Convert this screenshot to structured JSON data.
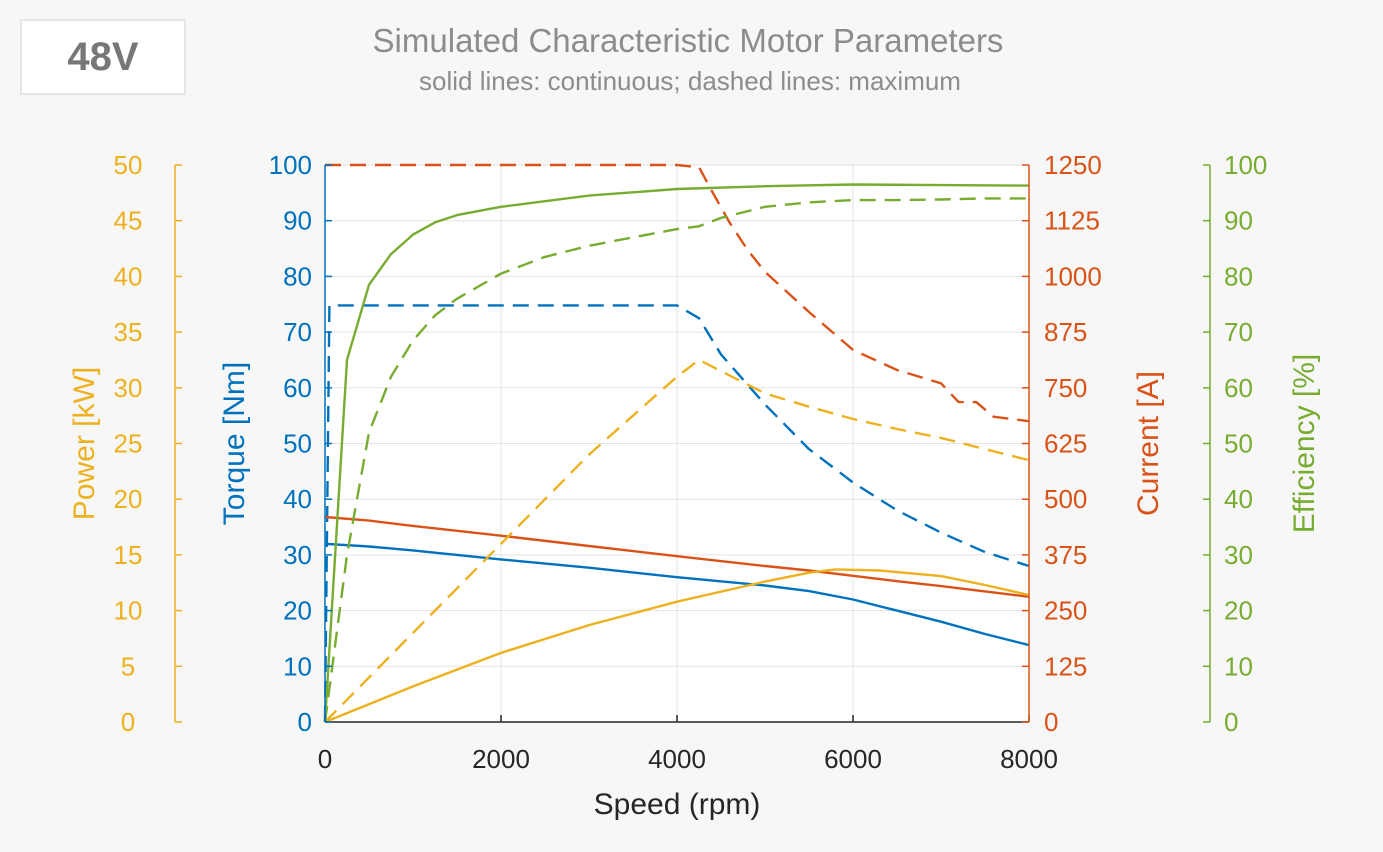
{
  "badge": "48V",
  "chart_data": {
    "type": "line",
    "title": "Simulated Characteristic Motor Parameters",
    "subtitle": "solid lines: continuous; dashed lines: maximum",
    "xlabel": "Speed (rpm)",
    "xlim": [
      0,
      8000
    ],
    "xticks": [
      0,
      2000,
      4000,
      6000,
      8000
    ],
    "grid": true,
    "colors": {
      "torque": "#0072bd",
      "current": "#d95319",
      "power": "#edb120",
      "efficiency": "#77ac30"
    },
    "axes": [
      {
        "id": "power",
        "label": "Power [kW]",
        "lim": [
          0,
          50
        ],
        "ticks": [
          0,
          5,
          10,
          15,
          20,
          25,
          30,
          35,
          40,
          45,
          50
        ],
        "color": "#edb120"
      },
      {
        "id": "torque",
        "label": "Torque [Nm]",
        "lim": [
          0,
          100
        ],
        "ticks": [
          0,
          10,
          20,
          30,
          40,
          50,
          60,
          70,
          80,
          90,
          100
        ],
        "color": "#0072bd"
      },
      {
        "id": "current",
        "label": "Current [A]",
        "lim": [
          0,
          1250
        ],
        "ticks": [
          0,
          125,
          250,
          375,
          500,
          625,
          750,
          875,
          1000,
          1125,
          1250
        ],
        "color": "#d95319"
      },
      {
        "id": "efficiency",
        "label": "Efficiency [%]",
        "lim": [
          0,
          100
        ],
        "ticks": [
          0,
          10,
          20,
          30,
          40,
          50,
          60,
          70,
          80,
          90,
          100
        ],
        "color": "#77ac30"
      }
    ],
    "series": [
      {
        "axis": "torque",
        "style": "dashed",
        "x": [
          0,
          50,
          4000,
          4250,
          4500,
          5000,
          5500,
          6000,
          6500,
          7000,
          7500,
          8000
        ],
        "y": [
          0,
          74.8,
          74.8,
          72.5,
          66,
          57,
          49,
          43,
          38,
          34,
          30.5,
          28
        ]
      },
      {
        "axis": "torque",
        "style": "solid",
        "x": [
          0,
          500,
          1000,
          2000,
          3000,
          4000,
          5000,
          5500,
          6000,
          6500,
          7000,
          7500,
          8000
        ],
        "y": [
          32,
          31.5,
          30.8,
          29.2,
          27.7,
          26,
          24.5,
          23.5,
          22,
          20,
          18,
          15.8,
          13.8
        ]
      },
      {
        "axis": "current",
        "style": "dashed",
        "x": [
          0,
          50,
          4000,
          4250,
          4400,
          4600,
          4800,
          5000,
          5500,
          6000,
          6500,
          7000,
          7200,
          7400,
          7600,
          8000
        ],
        "y": [
          1250,
          1250,
          1250,
          1245,
          1190,
          1120,
          1060,
          1010,
          920,
          835,
          790,
          760,
          718,
          718,
          685,
          675
        ]
      },
      {
        "axis": "current",
        "style": "solid",
        "x": [
          0,
          500,
          1000,
          2000,
          3000,
          4000,
          5000,
          5500,
          6000,
          6500,
          7000,
          7500,
          8000
        ],
        "y": [
          460,
          452,
          440,
          418,
          395,
          372,
          350,
          340,
          328,
          316,
          305,
          293,
          281
        ]
      },
      {
        "axis": "power",
        "style": "dashed",
        "x": [
          0,
          1000,
          2000,
          3000,
          4000,
          4250,
          4500,
          5000,
          5500,
          6000,
          6500,
          7000,
          7500,
          8000
        ],
        "y": [
          0,
          8,
          16,
          24,
          31,
          32.5,
          31.5,
          29.5,
          28.3,
          27.2,
          26.3,
          25.5,
          24.5,
          23.5
        ]
      },
      {
        "axis": "power",
        "style": "solid",
        "x": [
          0,
          1000,
          2000,
          3000,
          4000,
          5000,
          5500,
          5800,
          6300,
          7000,
          7500,
          8000
        ],
        "y": [
          0,
          3.2,
          6.2,
          8.7,
          10.8,
          12.6,
          13.4,
          13.7,
          13.6,
          13.1,
          12.3,
          11.4
        ]
      },
      {
        "axis": "efficiency",
        "style": "dashed",
        "x": [
          0,
          250,
          500,
          750,
          1000,
          1250,
          1500,
          2000,
          2500,
          3000,
          3500,
          4000,
          4250,
          4500,
          5000,
          5500,
          6000,
          6500,
          7000,
          7500,
          8000
        ],
        "y": [
          0,
          30,
          52,
          62,
          68.5,
          73,
          76,
          80.5,
          83.5,
          85.5,
          87,
          88.5,
          89,
          90.5,
          92.5,
          93.3,
          93.7,
          93.7,
          93.8,
          94,
          94
        ]
      },
      {
        "axis": "efficiency",
        "style": "solid",
        "x": [
          0,
          250,
          500,
          750,
          1000,
          1250,
          1500,
          2000,
          3000,
          4000,
          5000,
          6000,
          7000,
          8000
        ],
        "y": [
          0,
          65,
          78.5,
          84,
          87.5,
          89.7,
          91,
          92.5,
          94.5,
          95.7,
          96.2,
          96.5,
          96.4,
          96.3
        ]
      }
    ]
  }
}
